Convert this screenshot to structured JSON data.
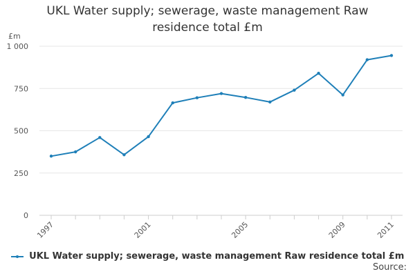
{
  "chart_data": {
    "type": "line",
    "title_line1": "UKL Water supply; sewerage, waste management Raw",
    "title_line2": "residence total £m",
    "ylabel": "£m",
    "ylim": [
      0,
      1000
    ],
    "yticks": [
      0,
      250,
      500,
      750,
      1000
    ],
    "ytick_labels": [
      "0",
      "250",
      "500",
      "750",
      "1 000"
    ],
    "x": [
      1997,
      1998,
      1999,
      2000,
      2001,
      2002,
      2003,
      2004,
      2005,
      2006,
      2007,
      2008,
      2009,
      2010,
      2011
    ],
    "xtick_labels": [
      "1997",
      "2001",
      "2005",
      "2009",
      "2011"
    ],
    "series": [
      {
        "name": "UKL Water supply; sewerage, waste management Raw residence total £m",
        "color": "#1e7fb8",
        "values": [
          350,
          375,
          460,
          358,
          465,
          665,
          695,
          720,
          697,
          670,
          740,
          840,
          712,
          920,
          945
        ]
      }
    ],
    "legend": "bottom-center",
    "source_label": "Source:"
  }
}
